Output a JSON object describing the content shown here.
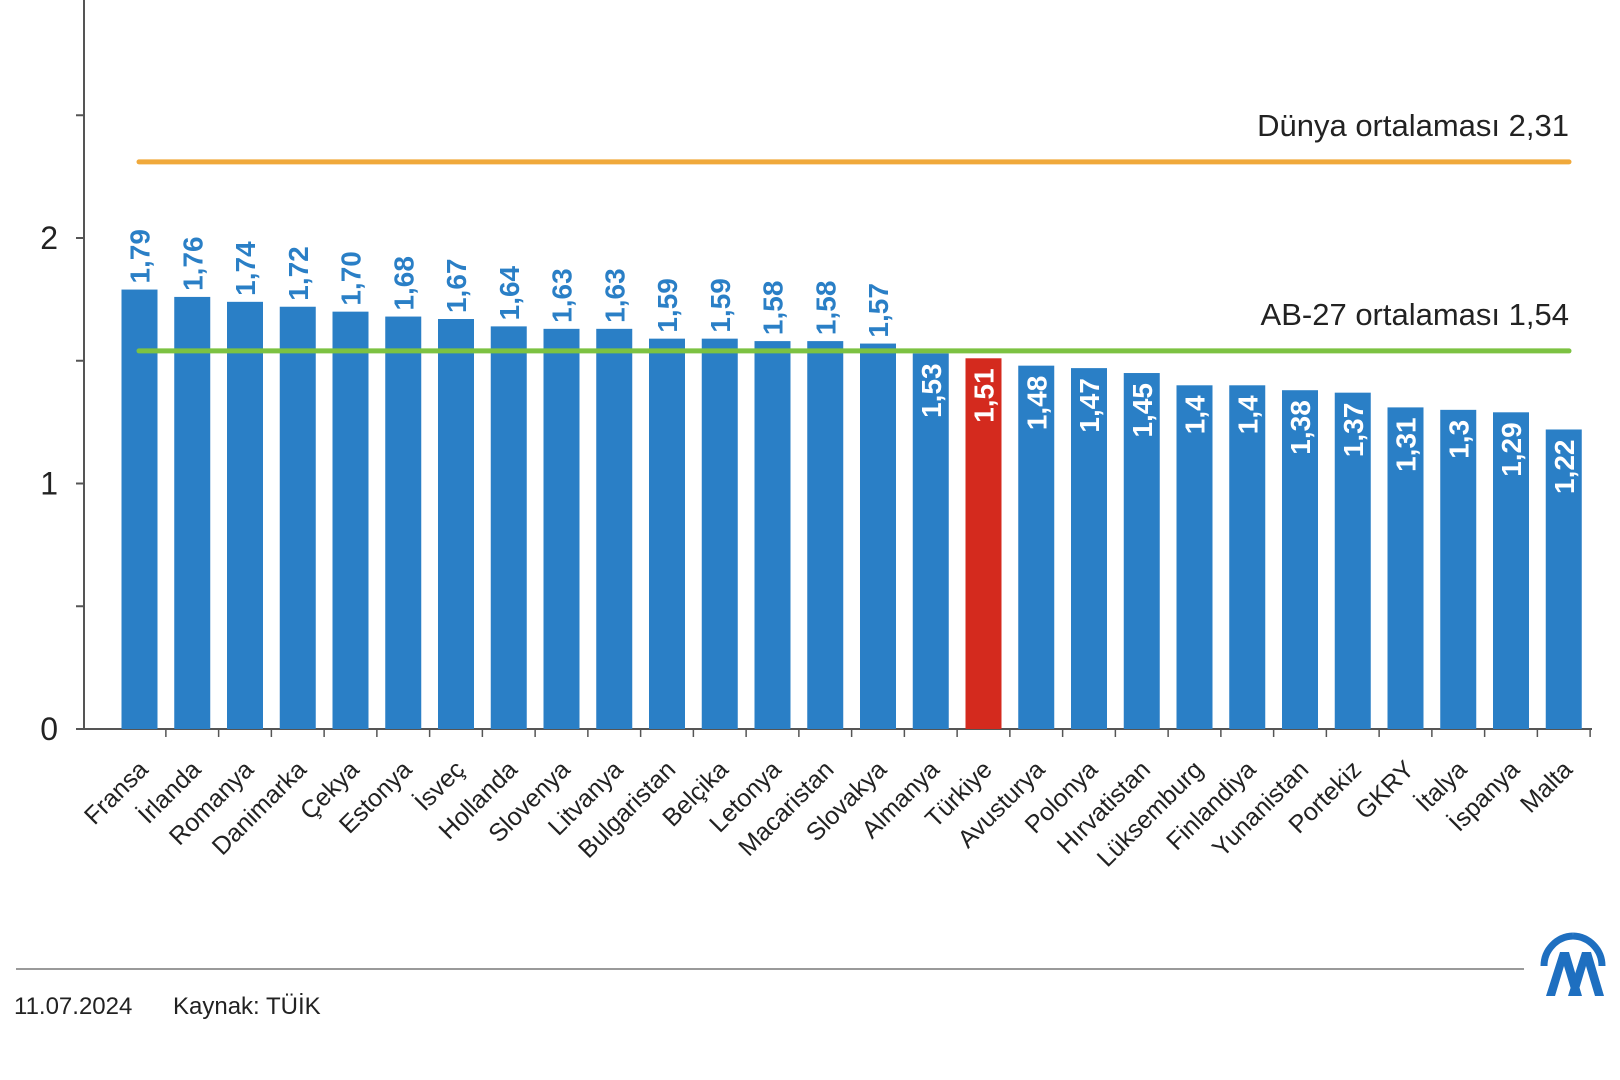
{
  "chart_data": {
    "type": "bar",
    "title": "",
    "xlabel": "",
    "ylabel": "",
    "ylim": [
      0,
      3
    ],
    "yticks": [
      0,
      1,
      2
    ],
    "categories": [
      "Fransa",
      "İrlanda",
      "Romanya",
      "Danimarka",
      "Çekya",
      "Estonya",
      "İsveç",
      "Hollanda",
      "Slovenya",
      "Litvanya",
      "Bulgaristan",
      "Belçika",
      "Letonya",
      "Macaristan",
      "Slovakya",
      "Almanya",
      "Türkiye",
      "Avusturya",
      "Polonya",
      "Hırvatistan",
      "Lüksemburg",
      "Finlandiya",
      "Yunanistan",
      "Portekiz",
      "GKRY",
      "İtalya",
      "İspanya",
      "Malta"
    ],
    "values": [
      1.79,
      1.76,
      1.74,
      1.72,
      1.7,
      1.68,
      1.67,
      1.64,
      1.63,
      1.63,
      1.59,
      1.59,
      1.58,
      1.58,
      1.57,
      1.53,
      1.51,
      1.48,
      1.47,
      1.45,
      1.4,
      1.4,
      1.38,
      1.37,
      1.31,
      1.3,
      1.29,
      1.22
    ],
    "value_labels": [
      "1,79",
      "1,76",
      "1,74",
      "1,72",
      "1,70",
      "1,68",
      "1,67",
      "1,64",
      "1,63",
      "1,63",
      "1,59",
      "1,59",
      "1,58",
      "1,58",
      "1,57",
      "1,53",
      "1,51",
      "1,48",
      "1,47",
      "1,45",
      "1,4",
      "1,4",
      "1,38",
      "1,37",
      "1,31",
      "1,3",
      "1,29",
      "1,22"
    ],
    "highlight_category": "Türkiye",
    "reference_lines": [
      {
        "label": "Dünya ortalaması 2,31",
        "value": 2.31,
        "color": "#f0a93b"
      },
      {
        "label": "AB-27 ortalaması 1,54",
        "value": 1.54,
        "color": "#7cc242"
      }
    ],
    "colors": {
      "bar": "#2a7fc6",
      "highlight": "#d42a1e",
      "axis": "#555555",
      "label_blue": "#2a7fc6"
    },
    "grid": false
  },
  "footer": {
    "date": "11.07.2024",
    "source": "Kaynak: TÜİK",
    "logo_icon": "aa-logo-icon"
  }
}
